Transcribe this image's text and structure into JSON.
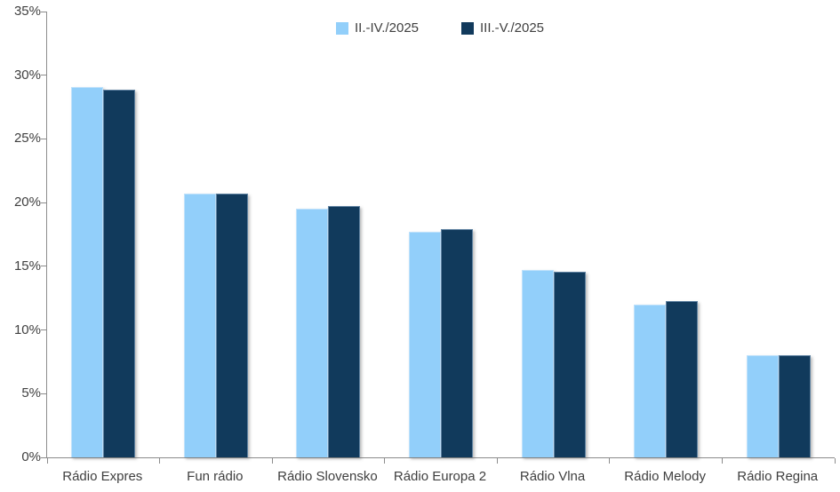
{
  "chart_data": {
    "type": "bar",
    "title": "",
    "categories": [
      "Rádio Expres",
      "Fun rádio",
      "Rádio Slovensko",
      "Rádio Europa 2",
      "Rádio Vlna",
      "Rádio Melody",
      "Rádio Regina"
    ],
    "series": [
      {
        "name": "II.-IV./2025",
        "color": "#92CFFA",
        "values": [
          29.1,
          20.7,
          19.5,
          17.7,
          14.7,
          12.0,
          8.0
        ]
      },
      {
        "name": "III.-V./2025",
        "color": "#113A5C",
        "values": [
          28.9,
          20.7,
          19.7,
          17.9,
          14.6,
          12.3,
          8.0
        ]
      }
    ],
    "xlabel": "",
    "ylabel": "",
    "ylim": [
      0,
      35
    ],
    "ytick_step": 5,
    "ytick_labels": [
      "0%",
      "5%",
      "10%",
      "15%",
      "20%",
      "25%",
      "30%",
      "35%"
    ],
    "value_format": "percent",
    "legend_position": "top-center",
    "grid": false,
    "axis_color": "#8C8C8C",
    "label_color": "#3F3F3F",
    "background": "#FFFFFF"
  }
}
